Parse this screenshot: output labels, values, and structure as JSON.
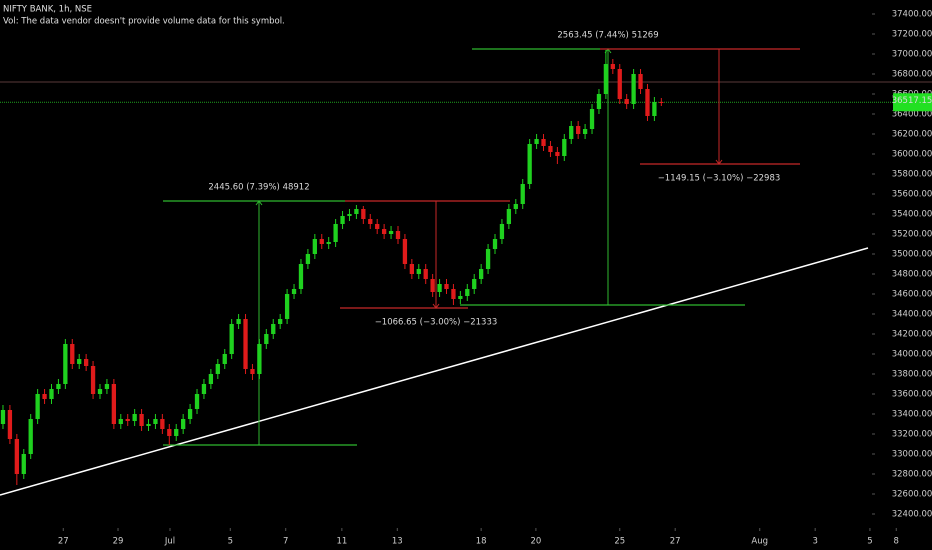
{
  "chart_data": {
    "type": "candlestick",
    "title": "NIFTY BANK, 1h, NSE",
    "subtitle": "Vol: The data vendor doesn't provide volume data for this symbol.",
    "up_color": "#1fd11f",
    "down_color": "#e01b1b",
    "open": [
      33300,
      33440,
      33150,
      32800,
      33000,
      33350,
      33600,
      33550,
      33650,
      33700,
      34100,
      33900,
      33950,
      33880,
      33600,
      33650,
      33700,
      33300,
      33350,
      33330,
      33400,
      33280,
      33300,
      33350,
      33250,
      33180,
      33250,
      33350,
      33450,
      33600,
      33700,
      33800,
      33900,
      34000,
      34300,
      34350,
      33850,
      33800,
      34100,
      34200,
      34300,
      34350,
      34600,
      34650,
      34900,
      35000,
      35150,
      35100,
      35120,
      35300,
      35380,
      35400,
      35450,
      35350,
      35300,
      35250,
      35200,
      35230,
      35150,
      34900,
      34800,
      34850,
      34750,
      34620,
      34700,
      34650,
      34550,
      34580,
      34650,
      34750,
      34850,
      35050,
      35150,
      35300,
      35450,
      35500,
      35700,
      36100,
      36150,
      36080,
      36020,
      35980,
      36150,
      36280,
      36200,
      36250,
      36450,
      36600,
      36900,
      36850,
      36550,
      36500,
      36800,
      36650,
      36380,
      36520
    ],
    "high": [
      33490,
      33490,
      33200,
      33050,
      33400,
      33650,
      33650,
      33700,
      33750,
      34150,
      34150,
      34000,
      34000,
      33930,
      33700,
      33750,
      33750,
      33400,
      33400,
      33450,
      33450,
      33350,
      33400,
      33400,
      33300,
      33300,
      33400,
      33500,
      33650,
      33750,
      33850,
      33950,
      34050,
      34350,
      34400,
      34400,
      33900,
      34150,
      34250,
      34350,
      34400,
      34650,
      34700,
      34950,
      35050,
      35200,
      35200,
      35170,
      35350,
      35430,
      35450,
      35490,
      35480,
      35400,
      35350,
      35300,
      35280,
      35280,
      35200,
      34950,
      34900,
      34900,
      34800,
      34750,
      34750,
      34700,
      34630,
      34700,
      34800,
      34900,
      35100,
      35200,
      35350,
      35500,
      35550,
      35750,
      36150,
      36200,
      36200,
      36130,
      36070,
      36200,
      36330,
      36330,
      36300,
      36500,
      36650,
      37040,
      36950,
      36900,
      36600,
      36850,
      36850,
      36700,
      36570,
      36560
    ],
    "low": [
      33250,
      33100,
      32690,
      32750,
      32950,
      33300,
      33500,
      33500,
      33600,
      33650,
      33850,
      33850,
      33830,
      33550,
      33550,
      33600,
      33250,
      33250,
      33280,
      33280,
      33230,
      33230,
      33250,
      33200,
      33090,
      33130,
      33200,
      33300,
      33400,
      33550,
      33650,
      33750,
      33850,
      33950,
      34250,
      33800,
      33740,
      33750,
      34050,
      34150,
      34250,
      34300,
      34550,
      34600,
      34850,
      34950,
      35050,
      35050,
      35070,
      35250,
      35330,
      35350,
      35300,
      35250,
      35200,
      35150,
      35150,
      35100,
      34850,
      34750,
      34750,
      34700,
      34570,
      34570,
      34600,
      34490,
      34500,
      34530,
      34600,
      34700,
      34800,
      35000,
      35100,
      35250,
      35400,
      35450,
      35650,
      36050,
      36030,
      35970,
      35900,
      35930,
      36100,
      36150,
      36150,
      36200,
      36400,
      36550,
      36800,
      36500,
      36450,
      36450,
      36600,
      36330,
      36330,
      36480
    ],
    "close": [
      33440,
      33150,
      32800,
      33000,
      33350,
      33600,
      33550,
      33650,
      33700,
      34100,
      33900,
      33950,
      33880,
      33600,
      33650,
      33700,
      33300,
      33350,
      33330,
      33400,
      33280,
      33300,
      33350,
      33250,
      33180,
      33250,
      33350,
      33450,
      33600,
      33700,
      33800,
      33900,
      34000,
      34300,
      34350,
      33850,
      33800,
      34100,
      34200,
      34300,
      34350,
      34600,
      34650,
      34900,
      35000,
      35150,
      35100,
      35120,
      35300,
      35380,
      35400,
      35450,
      35350,
      35300,
      35250,
      35200,
      35230,
      35150,
      34900,
      34800,
      34850,
      34750,
      34620,
      34700,
      34650,
      34550,
      34580,
      34650,
      34750,
      34850,
      35050,
      35150,
      35300,
      35450,
      35500,
      35700,
      36100,
      36150,
      36080,
      36020,
      35980,
      36150,
      36280,
      36200,
      36250,
      36450,
      36600,
      36900,
      36850,
      36550,
      36500,
      36800,
      36650,
      36380,
      36520,
      36517.15
    ],
    "xlim": [
      -0.43,
      125.4
    ],
    "xticks": [
      {
        "value": 8.7,
        "label": "27"
      },
      {
        "value": 16.6,
        "label": "29"
      },
      {
        "value": 24.1,
        "label": "Jul"
      },
      {
        "value": 32.8,
        "label": "5"
      },
      {
        "value": 40.8,
        "label": "7"
      },
      {
        "value": 48.9,
        "label": "11"
      },
      {
        "value": 56.9,
        "label": "13"
      },
      {
        "value": 69,
        "label": "18"
      },
      {
        "value": 76.9,
        "label": "20"
      },
      {
        "value": 89,
        "label": "25"
      },
      {
        "value": 97,
        "label": "27"
      },
      {
        "value": 109.2,
        "label": "Aug"
      },
      {
        "value": 117.2,
        "label": "3"
      },
      {
        "value": 125.1,
        "label": "5"
      },
      {
        "value": 128.9,
        "label": "8"
      }
    ],
    "ylim": [
      32260,
      37540
    ],
    "yticks": [
      {
        "value": 32400,
        "label": "32400.00"
      },
      {
        "value": 32600,
        "label": "32600.00"
      },
      {
        "value": 32800,
        "label": "32800.00"
      },
      {
        "value": 33000,
        "label": "33000.00"
      },
      {
        "value": 33200,
        "label": "33200.00"
      },
      {
        "value": 33400,
        "label": "33400.00"
      },
      {
        "value": 33600,
        "label": "33600.00"
      },
      {
        "value": 33800,
        "label": "33800.00"
      },
      {
        "value": 34000,
        "label": "34000.00"
      },
      {
        "value": 34200,
        "label": "34200.00"
      },
      {
        "value": 34400,
        "label": "34400.00"
      },
      {
        "value": 34600,
        "label": "34600.00"
      },
      {
        "value": 34800,
        "label": "34800.00"
      },
      {
        "value": 35000,
        "label": "35000.00"
      },
      {
        "value": 35200,
        "label": "35200.00"
      },
      {
        "value": 35400,
        "label": "35400.00"
      },
      {
        "value": 35600,
        "label": "35600.00"
      },
      {
        "value": 35800,
        "label": "35800.00"
      },
      {
        "value": 36000,
        "label": "36000.00"
      },
      {
        "value": 36200,
        "label": "36200.00"
      },
      {
        "value": 36400,
        "label": "36400.00"
      },
      {
        "value": 36600,
        "label": "36600.00"
      },
      {
        "value": 36800,
        "label": "36800.00"
      },
      {
        "value": 37000,
        "label": "37000.00"
      },
      {
        "value": 37200,
        "label": "37200.00"
      },
      {
        "value": 37400,
        "label": "37400.00"
      }
    ],
    "grid": false,
    "last_price": 36517.15,
    "level_line": 36720,
    "trendline": {
      "color": "#ffffff",
      "values": [
        32590,
        35060
      ]
    },
    "measures": [
      {
        "label": "2445.60 (7.39%) 48912",
        "color": "#2fb82f",
        "high": 35530,
        "low": 33090
      },
      {
        "label": "−1066.65 (−3.00%) −21333",
        "color": "#c62828",
        "high": 35530,
        "low": 34460
      },
      {
        "label": "2563.45 (7.44%) 51269",
        "color": "#2fb82f",
        "high": 37050,
        "low": 34490
      },
      {
        "label": "−1149.15 (−3.10%) −22983",
        "color": "#c62828",
        "high": 37050,
        "low": 35900
      }
    ]
  }
}
